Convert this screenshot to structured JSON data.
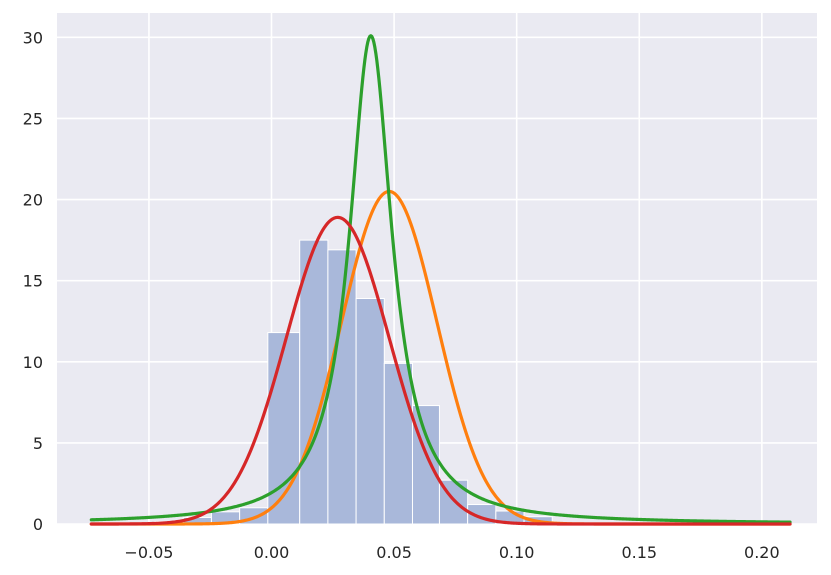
{
  "chart_data": {
    "type": "bar",
    "title": "",
    "xlabel": "",
    "ylabel": "",
    "xlim": [
      -0.0875,
      0.2225
    ],
    "ylim": [
      0,
      31.5
    ],
    "grid": true,
    "x_ticks": [
      {
        "value": -0.05,
        "label": "−0.05"
      },
      {
        "value": 0.0,
        "label": "0.00"
      },
      {
        "value": 0.05,
        "label": "0.05"
      },
      {
        "value": 0.1,
        "label": "0.10"
      },
      {
        "value": 0.15,
        "label": "0.15"
      },
      {
        "value": 0.2,
        "label": "0.20"
      }
    ],
    "y_ticks": [
      {
        "value": 0,
        "label": "0"
      },
      {
        "value": 5,
        "label": "5"
      },
      {
        "value": 10,
        "label": "10"
      },
      {
        "value": 15,
        "label": "15"
      },
      {
        "value": 20,
        "label": "20"
      },
      {
        "value": 25,
        "label": "25"
      },
      {
        "value": 30,
        "label": "30"
      }
    ],
    "histogram": {
      "color": "#a9b8da",
      "bins": [
        {
          "x0": -0.0475,
          "x1": -0.036,
          "value": 0.15
        },
        {
          "x0": -0.036,
          "x1": -0.0245,
          "value": 0.4
        },
        {
          "x0": -0.0245,
          "x1": -0.013,
          "value": 0.75
        },
        {
          "x0": -0.013,
          "x1": -0.0015,
          "value": 1.0
        },
        {
          "x0": -0.0015,
          "x1": 0.0115,
          "value": 11.8
        },
        {
          "x0": 0.0115,
          "x1": 0.023,
          "value": 17.5
        },
        {
          "x0": 0.023,
          "x1": 0.0345,
          "value": 16.9
        },
        {
          "x0": 0.0345,
          "x1": 0.046,
          "value": 13.9
        },
        {
          "x0": 0.046,
          "x1": 0.0575,
          "value": 9.9
        },
        {
          "x0": 0.0575,
          "x1": 0.0685,
          "value": 7.3
        },
        {
          "x0": 0.0685,
          "x1": 0.08,
          "value": 2.7
        },
        {
          "x0": 0.08,
          "x1": 0.0915,
          "value": 1.2
        },
        {
          "x0": 0.0915,
          "x1": 0.103,
          "value": 0.8
        },
        {
          "x0": 0.103,
          "x1": 0.1145,
          "value": 0.45
        }
      ]
    },
    "series": [
      {
        "type": "line",
        "color": "#ff7f0e",
        "distribution": "normal",
        "mu": 0.048,
        "sigma": 0.0195,
        "peak": 20.5,
        "x_range": [
          -0.0735,
          0.2115
        ]
      },
      {
        "type": "line",
        "color": "#2ca02c",
        "distribution": "cauchy",
        "x0": 0.0405,
        "gamma": 0.0106,
        "peak": 30.1,
        "x_range": [
          -0.0735,
          0.2115
        ]
      },
      {
        "type": "line",
        "color": "#d62728",
        "distribution": "normal",
        "mu": 0.027,
        "sigma": 0.021,
        "peak": 18.9,
        "x_range": [
          -0.0735,
          0.2115
        ]
      }
    ]
  }
}
